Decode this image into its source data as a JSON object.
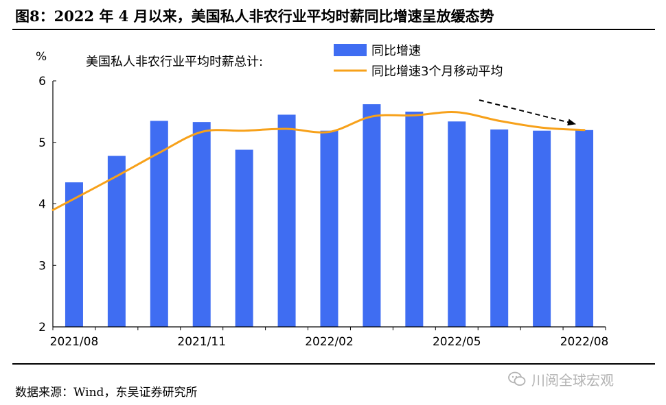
{
  "figure": {
    "title": "图8：2022 年 4 月以来，美国私人非农行业平均时薪同比增速呈放缓态势",
    "source": "数据来源：Wind，东吴证券研究所",
    "watermark": "川阅全球宏观"
  },
  "colors": {
    "bar": "#3F6DF2",
    "line": "#F7A11A",
    "arrow": "#000000",
    "axis": "#000000",
    "watermark": "#B3B3B3"
  },
  "chart_data": {
    "type": "bar",
    "title": "美国私人非农行业平均时薪总计:",
    "ylabel": "%",
    "ylim": [
      2,
      6
    ],
    "yticks": [
      "2",
      "3",
      "4",
      "5",
      "6"
    ],
    "x": [
      "2021/08",
      "2021/09",
      "2021/10",
      "2021/11",
      "2021/12",
      "2022/01",
      "2022/02",
      "2022/03",
      "2022/04",
      "2022/05",
      "2022/06",
      "2022/07",
      "2022/08"
    ],
    "xtick_labels": [
      "2021/08",
      "2021/11",
      "2022/02",
      "2022/05",
      "2022/08"
    ],
    "grid": false,
    "legend_position": "top-right",
    "series": [
      {
        "name": "同比增速",
        "kind": "bar",
        "values": [
          4.35,
          4.78,
          5.35,
          5.33,
          4.88,
          5.45,
          5.19,
          5.62,
          5.5,
          5.34,
          5.21,
          5.19,
          5.2
        ]
      },
      {
        "name": "同比增速3个月移动平均",
        "kind": "line",
        "values": [
          3.9,
          4.45,
          4.83,
          5.17,
          5.19,
          5.22,
          5.17,
          5.42,
          5.44,
          5.49,
          5.35,
          5.24,
          5.2
        ]
      }
    ],
    "annotation": "arrow-downward-trend"
  }
}
